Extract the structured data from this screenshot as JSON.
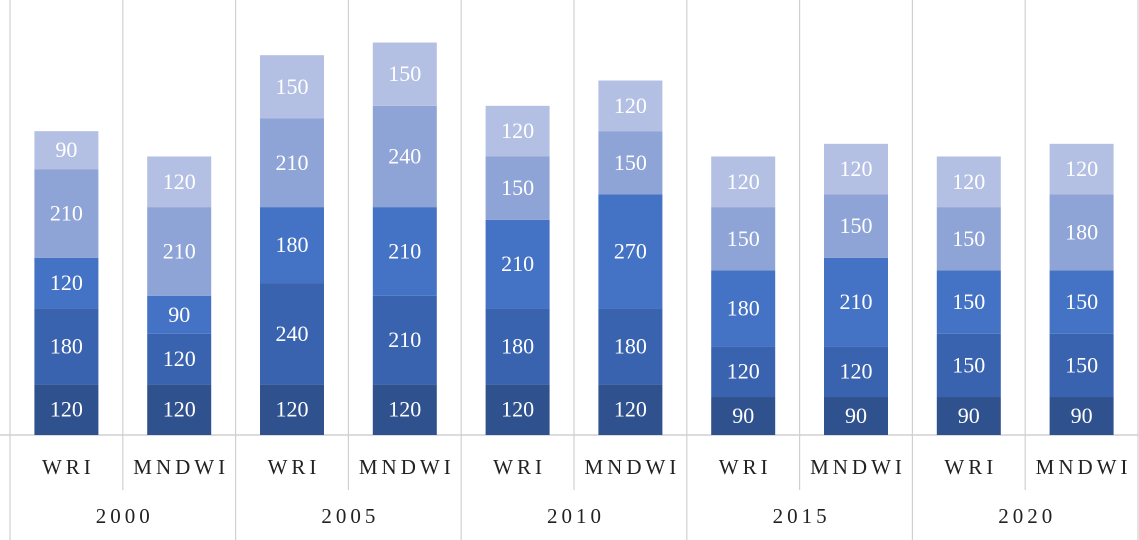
{
  "chart_data": {
    "type": "stacked_bar",
    "groups": [
      "2000",
      "2005",
      "2010",
      "2015",
      "2020"
    ],
    "categories": [
      "WRI",
      "MNDWI",
      "WRI",
      "MNDWI",
      "WRI",
      "MNDWI",
      "WRI",
      "MNDWI",
      "WRI",
      "MNDWI"
    ],
    "series": [
      {
        "color": "#2f528f",
        "values": [
          120,
          120,
          120,
          120,
          120,
          120,
          90,
          90,
          90,
          90
        ]
      },
      {
        "color": "#3963af",
        "values": [
          180,
          120,
          240,
          210,
          180,
          180,
          120,
          120,
          150,
          150
        ]
      },
      {
        "color": "#4472c4",
        "values": [
          120,
          90,
          180,
          210,
          210,
          270,
          180,
          210,
          150,
          150
        ]
      },
      {
        "color": "#8ea3d6",
        "values": [
          210,
          210,
          210,
          240,
          150,
          150,
          150,
          150,
          150,
          180
        ]
      },
      {
        "color": "#b4c0e3",
        "values": [
          90,
          120,
          150,
          150,
          120,
          120,
          120,
          120,
          120,
          120
        ]
      }
    ],
    "ylim": [
      0,
      1000
    ]
  }
}
